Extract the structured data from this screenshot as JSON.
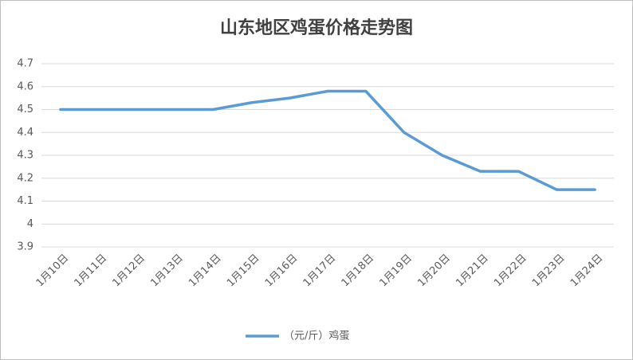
{
  "chart_data": {
    "type": "line",
    "title": "山东地区鸡蛋价格走势图",
    "categories": [
      "1月10日",
      "1月11日",
      "1月12日",
      "1月13日",
      "1月14日",
      "1月15日",
      "1月16日",
      "1月17日",
      "1月18日",
      "1月19日",
      "1月20日",
      "1月21日",
      "1月22日",
      "1月23日",
      "1月24日"
    ],
    "series": [
      {
        "name": "（元/斤）鸡蛋",
        "color": "#5b9bd5",
        "values": [
          4.5,
          4.5,
          4.5,
          4.5,
          4.5,
          4.53,
          4.55,
          4.58,
          4.58,
          4.4,
          4.3,
          4.23,
          4.23,
          4.15,
          4.15
        ]
      }
    ],
    "ylim": [
      3.9,
      4.7
    ],
    "yticks": [
      3.9,
      4,
      4.1,
      4.2,
      4.3,
      4.4,
      4.5,
      4.6,
      4.7
    ],
    "grid": true,
    "legend": "bottom"
  }
}
